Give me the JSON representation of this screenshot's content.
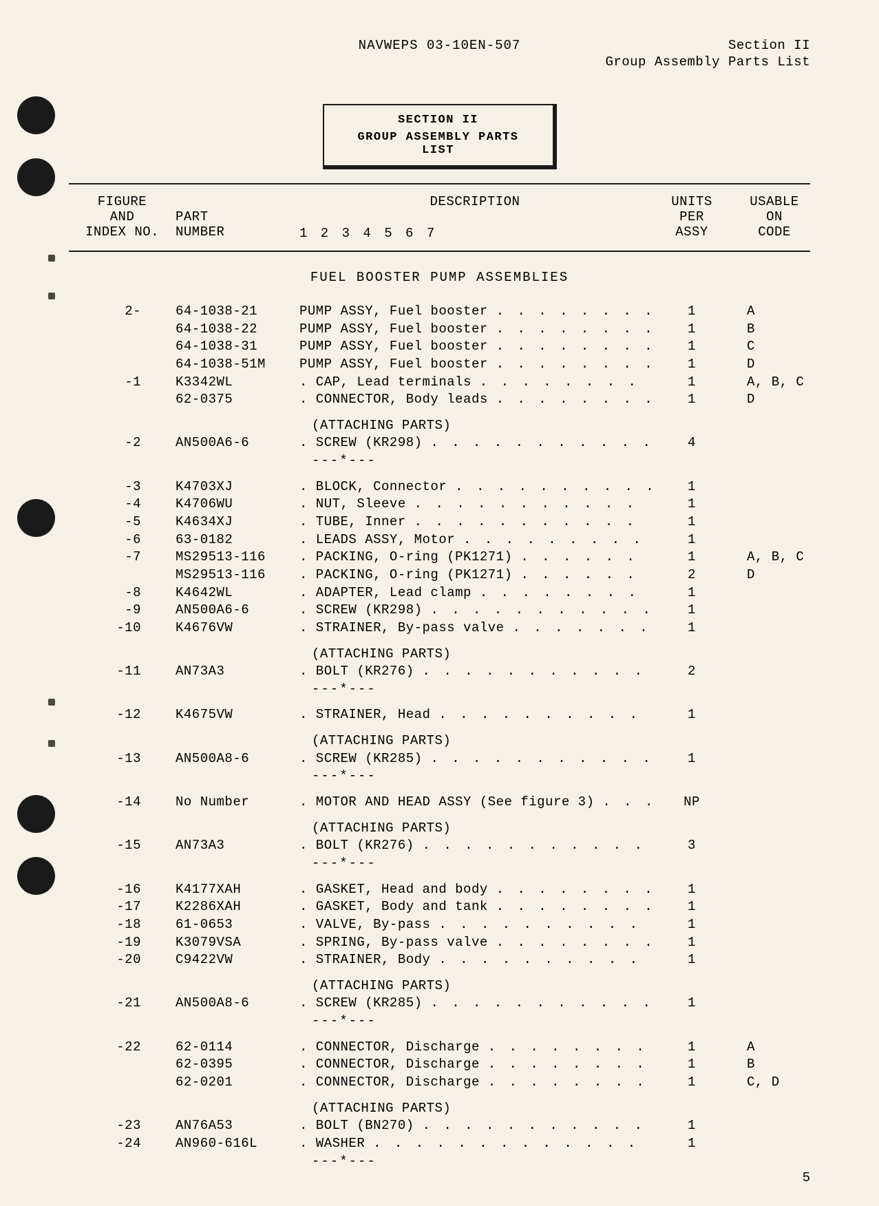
{
  "header": {
    "center": "NAVWEPS 03-10EN-507",
    "right_line1": "Section II",
    "right_line2": "Group Assembly Parts List"
  },
  "section_box": {
    "line1": "SECTION II",
    "line2": "GROUP ASSEMBLY PARTS LIST"
  },
  "columns": {
    "fig_l1": "FIGURE",
    "fig_l2": "AND",
    "fig_l3": "INDEX NO.",
    "part_l1": "PART",
    "part_l2": "NUMBER",
    "desc_l1": "DESCRIPTION",
    "desc_indent": "1 2 3 4 5 6 7",
    "units_l1": "UNITS",
    "units_l2": "PER",
    "units_l3": "ASSY",
    "code_l1": "USABLE",
    "code_l2": "ON",
    "code_l3": "CODE"
  },
  "assembly_title": "FUEL BOOSTER PUMP ASSEMBLIES",
  "attach_parts": "(ATTACHING PARTS)",
  "sep": "---*---",
  "rows": [
    {
      "idx": "2-",
      "part": "64-1038-21",
      "desc": "PUMP ASSY, Fuel booster",
      "indent": 0,
      "dots": ". . . . . . . . . . . . .",
      "units": "1",
      "code": "A"
    },
    {
      "idx": "",
      "part": "64-1038-22",
      "desc": "PUMP ASSY, Fuel booster",
      "indent": 0,
      "dots": ". . . . . . . . . . . . .",
      "units": "1",
      "code": "B"
    },
    {
      "idx": "",
      "part": "64-1038-31",
      "desc": "PUMP ASSY, Fuel booster",
      "indent": 0,
      "dots": ". . . . . . . . . . . . .",
      "units": "1",
      "code": "C"
    },
    {
      "idx": "",
      "part": "64-1038-51M",
      "desc": "PUMP ASSY, Fuel booster",
      "indent": 0,
      "dots": ". . . . . . . . . . . . .",
      "units": "1",
      "code": "D"
    },
    {
      "idx": "-1",
      "part": "K3342WL",
      "desc": ". CAP, Lead terminals",
      "indent": 0,
      "dots": ". . . . . . . . . . . . . .",
      "units": "1",
      "code": "A, B, C"
    },
    {
      "idx": "",
      "part": "62-0375",
      "desc": ". CONNECTOR, Body leads",
      "indent": 0,
      "dots": ". . . . . . . . . . .",
      "units": "1",
      "code": "D"
    },
    {
      "type": "attach"
    },
    {
      "idx": "-2",
      "part": "AN500A6-6",
      "desc": ". SCREW (KR298)",
      "indent": 0,
      "dots": ". . . . . . . . . . . . . . . . .",
      "units": "4",
      "code": ""
    },
    {
      "type": "sep"
    },
    {
      "idx": "-3",
      "part": "K4703XJ",
      "desc": ". BLOCK, Connector",
      "indent": 0,
      "dots": ". . . . . . . . . . . . . . .",
      "units": "1",
      "code": ""
    },
    {
      "idx": "-4",
      "part": "K4706WU",
      "desc": ". NUT, Sleeve",
      "indent": 0,
      "dots": ". . . . . . . . . . . . . . . . . .",
      "units": "1",
      "code": ""
    },
    {
      "idx": "-5",
      "part": "K4634XJ",
      "desc": ". TUBE, Inner",
      "indent": 0,
      "dots": ". . . . . . . . . . . . . . . . . .",
      "units": "1",
      "code": ""
    },
    {
      "idx": "-6",
      "part": "63-0182",
      "desc": ". LEADS ASSY, Motor",
      "indent": 0,
      "dots": ". . . . . . . . . . . . . . .",
      "units": "1",
      "code": ""
    },
    {
      "idx": "-7",
      "part": "MS29513-116",
      "desc": ". PACKING, O-ring (PK1271)",
      "indent": 0,
      "dots": ". . . . . . . . . . . .",
      "units": "1",
      "code": "A, B, C"
    },
    {
      "idx": "",
      "part": "MS29513-116",
      "desc": ". PACKING, O-ring (PK1271)",
      "indent": 0,
      "dots": ". . . . . . . . . . . .",
      "units": "2",
      "code": "D"
    },
    {
      "idx": "-8",
      "part": "K4642WL",
      "desc": ". ADAPTER, Lead clamp",
      "indent": 0,
      "dots": ". . . . . . . . . . . . . .",
      "units": "1",
      "code": ""
    },
    {
      "idx": "-9",
      "part": "AN500A6-6",
      "desc": ". SCREW (KR298)",
      "indent": 0,
      "dots": ". . . . . . . . . . . . . . . . .",
      "units": "1",
      "code": ""
    },
    {
      "idx": "-10",
      "part": "K4676VW",
      "desc": ". STRAINER, By-pass valve",
      "indent": 0,
      "dots": ". . . . . . . . . . .",
      "units": "1",
      "code": ""
    },
    {
      "type": "attach"
    },
    {
      "idx": "-11",
      "part": "AN73A3",
      "desc": ". BOLT (KR276)",
      "indent": 0,
      "dots": ". . . . . . . . . . . . . . . . . .",
      "units": "2",
      "code": ""
    },
    {
      "type": "sep"
    },
    {
      "idx": "-12",
      "part": "K4675VW",
      "desc": ". STRAINER, Head",
      "indent": 0,
      "dots": ". . . . . . . . . . . . . . . .",
      "units": "1",
      "code": ""
    },
    {
      "type": "attach"
    },
    {
      "idx": "-13",
      "part": "AN500A8-6",
      "desc": ". SCREW (KR285)",
      "indent": 0,
      "dots": ". . . . . . . . . . . . . . . . .",
      "units": "1",
      "code": ""
    },
    {
      "type": "sep"
    },
    {
      "idx": "-14",
      "part": "No Number",
      "desc": ". MOTOR AND HEAD ASSY (See figure 3)",
      "indent": 0,
      "dots": ". . . . . .",
      "units": "NP",
      "code": ""
    },
    {
      "type": "attach"
    },
    {
      "idx": "-15",
      "part": "AN73A3",
      "desc": ". BOLT (KR276)",
      "indent": 0,
      "dots": ". . . . . . . . . . . . . . . . . .",
      "units": "3",
      "code": ""
    },
    {
      "type": "sep"
    },
    {
      "idx": "-16",
      "part": "K4177XAH",
      "desc": ". GASKET, Head and body",
      "indent": 0,
      "dots": ". . . . . . . . . . . .",
      "units": "1",
      "code": ""
    },
    {
      "idx": "-17",
      "part": "K2286XAH",
      "desc": ". GASKET, Body and tank",
      "indent": 0,
      "dots": ". . . . . . . . . . . .",
      "units": "1",
      "code": ""
    },
    {
      "idx": "-18",
      "part": "61-0653",
      "desc": ". VALVE, By-pass",
      "indent": 0,
      "dots": ". . . . . . . . . . . . . . . . .",
      "units": "1",
      "code": ""
    },
    {
      "idx": "-19",
      "part": "K3079VSA",
      "desc": ". SPRING, By-pass valve",
      "indent": 0,
      "dots": ". . . . . . . . . . . . . .",
      "units": "1",
      "code": ""
    },
    {
      "idx": "-20",
      "part": "C9422VW",
      "desc": ". STRAINER, Body",
      "indent": 0,
      "dots": ". . . . . . . . . . . . . . . .",
      "units": "1",
      "code": ""
    },
    {
      "type": "attach"
    },
    {
      "idx": "-21",
      "part": "AN500A8-6",
      "desc": ". SCREW (KR285)",
      "indent": 0,
      "dots": ". . . . . . . . . . . . . . . . .",
      "units": "1",
      "code": ""
    },
    {
      "type": "sep"
    },
    {
      "idx": "-22",
      "part": "62-0114",
      "desc": ". CONNECTOR, Discharge",
      "indent": 0,
      "dots": ". . . . . . . . . . . . .",
      "units": "1",
      "code": "A"
    },
    {
      "idx": "",
      "part": "62-0395",
      "desc": ". CONNECTOR, Discharge",
      "indent": 0,
      "dots": ". . . . . . . . . . . . .",
      "units": "1",
      "code": "B"
    },
    {
      "idx": "",
      "part": "62-0201",
      "desc": ". CONNECTOR, Discharge",
      "indent": 0,
      "dots": ". . . . . . . . . . . . .",
      "units": "1",
      "code": "C, D"
    },
    {
      "type": "attach"
    },
    {
      "idx": "-23",
      "part": "AN76A53",
      "desc": ". BOLT (BN270)",
      "indent": 0,
      "dots": ". . . . . . . . . . . . . . . . . .",
      "units": "1",
      "code": ""
    },
    {
      "idx": "-24",
      "part": "AN960-616L",
      "desc": ". WASHER",
      "indent": 0,
      "dots": ". . . . . . . . . . . . . . . . . . . .",
      "units": "1",
      "code": ""
    },
    {
      "type": "sep"
    }
  ],
  "page_num": "5",
  "punch_holes": [
    140,
    230,
    725,
    1155,
    1245
  ],
  "small_marks": [
    370,
    425,
    1015,
    1075
  ]
}
